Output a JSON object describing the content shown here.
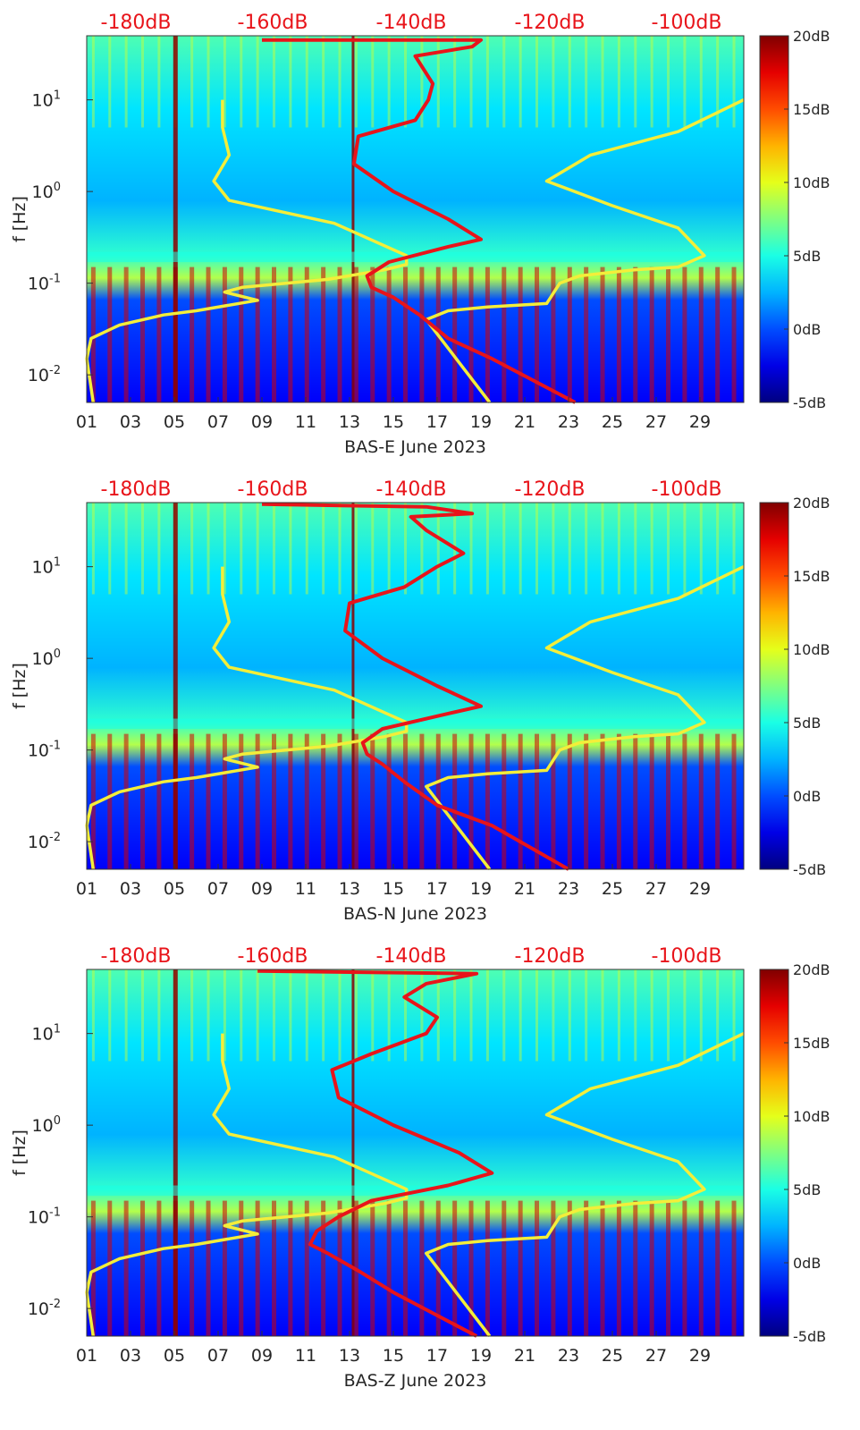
{
  "chart_data": [
    {
      "type": "heatmap",
      "title": "",
      "xlabel": "BAS-E June 2023",
      "ylabel": "f [Hz]",
      "x_ticks": [
        "01",
        "03",
        "05",
        "07",
        "09",
        "11",
        "13",
        "15",
        "17",
        "19",
        "21",
        "23",
        "25",
        "27",
        "29"
      ],
      "y_ticks": [
        "10^1",
        "10^0",
        "10^-1",
        "10^-2"
      ],
      "y_range_hz": [
        0.005,
        50
      ],
      "top_ticks": [
        "-180dB",
        "-160dB",
        "-140dB",
        "-120dB",
        "-100dB"
      ],
      "colorbar": {
        "labels": [
          "20dB",
          "15dB",
          "10dB",
          "5dB",
          "0dB",
          "-5dB"
        ],
        "range_db": [
          -5,
          20
        ]
      },
      "series": [
        {
          "name": "yellow curve",
          "points": [
            [
              1.3,
              0.005
            ],
            [
              1.0,
              0.015
            ],
            [
              1.2,
              0.025
            ],
            [
              2.5,
              0.035
            ],
            [
              4.5,
              0.045
            ],
            [
              6.0,
              0.05
            ],
            [
              8.8,
              0.065
            ],
            [
              7.3,
              0.08
            ],
            [
              8.1,
              0.09
            ],
            [
              12.0,
              0.11
            ],
            [
              14.6,
              0.14
            ],
            [
              15.6,
              0.16
            ],
            [
              15.6,
              0.2
            ],
            [
              12.3,
              0.45
            ],
            [
              7.5,
              0.8
            ],
            [
              6.8,
              1.3
            ],
            [
              7.5,
              2.5
            ],
            [
              7.2,
              5
            ],
            [
              7.2,
              10
            ]
          ]
        },
        {
          "name": "yellow curve right",
          "points": [
            [
              19.4,
              0.005
            ],
            [
              16.5,
              0.04
            ],
            [
              17.5,
              0.05
            ],
            [
              19.3,
              0.055
            ],
            [
              22.0,
              0.06
            ],
            [
              22.6,
              0.1
            ],
            [
              23.5,
              0.12
            ],
            [
              26.0,
              0.14
            ],
            [
              28.0,
              0.15
            ],
            [
              29.2,
              0.2
            ],
            [
              28.0,
              0.4
            ],
            [
              25.0,
              0.7
            ],
            [
              22.0,
              1.3
            ],
            [
              24.0,
              2.5
            ],
            [
              28.0,
              4.5
            ],
            [
              31.0,
              10
            ]
          ]
        },
        {
          "name": "red curve",
          "points": [
            [
              23.3,
              0.005
            ],
            [
              19.5,
              0.015
            ],
            [
              17.5,
              0.025
            ],
            [
              16.2,
              0.045
            ],
            [
              15.0,
              0.07
            ],
            [
              14.0,
              0.09
            ],
            [
              13.8,
              0.12
            ],
            [
              14.8,
              0.17
            ],
            [
              17.5,
              0.25
            ],
            [
              19.0,
              0.3
            ],
            [
              17.5,
              0.5
            ],
            [
              15.0,
              1.0
            ],
            [
              13.2,
              2.0
            ],
            [
              13.4,
              4.0
            ],
            [
              16.0,
              6.0
            ],
            [
              16.6,
              10
            ],
            [
              16.8,
              15
            ],
            [
              16.0,
              30
            ],
            [
              18.6,
              38
            ],
            [
              19.0,
              45
            ],
            [
              9.0,
              45
            ]
          ]
        }
      ]
    },
    {
      "type": "heatmap",
      "title": "",
      "xlabel": "BAS-N June 2023",
      "ylabel": "f [Hz]",
      "x_ticks": [
        "01",
        "03",
        "05",
        "07",
        "09",
        "11",
        "13",
        "15",
        "17",
        "19",
        "21",
        "23",
        "25",
        "27",
        "29"
      ],
      "y_ticks": [
        "10^1",
        "10^0",
        "10^-1",
        "10^-2"
      ],
      "y_range_hz": [
        0.005,
        50
      ],
      "top_ticks": [
        "-180dB",
        "-160dB",
        "-140dB",
        "-120dB",
        "-100dB"
      ],
      "colorbar": {
        "labels": [
          "20dB",
          "15dB",
          "10dB",
          "5dB",
          "0dB",
          "-5dB"
        ],
        "range_db": [
          -5,
          20
        ]
      },
      "series": [
        {
          "name": "yellow curve",
          "points": [
            [
              1.3,
              0.005
            ],
            [
              1.0,
              0.015
            ],
            [
              1.2,
              0.025
            ],
            [
              2.5,
              0.035
            ],
            [
              4.5,
              0.045
            ],
            [
              6.0,
              0.05
            ],
            [
              8.8,
              0.065
            ],
            [
              7.3,
              0.08
            ],
            [
              8.1,
              0.09
            ],
            [
              12.0,
              0.11
            ],
            [
              14.6,
              0.14
            ],
            [
              15.6,
              0.16
            ],
            [
              15.6,
              0.2
            ],
            [
              12.3,
              0.45
            ],
            [
              7.5,
              0.8
            ],
            [
              6.8,
              1.3
            ],
            [
              7.5,
              2.5
            ],
            [
              7.2,
              5
            ],
            [
              7.2,
              10
            ]
          ]
        },
        {
          "name": "yellow curve right",
          "points": [
            [
              19.4,
              0.005
            ],
            [
              16.5,
              0.04
            ],
            [
              17.5,
              0.05
            ],
            [
              19.3,
              0.055
            ],
            [
              22.0,
              0.06
            ],
            [
              22.6,
              0.1
            ],
            [
              23.5,
              0.12
            ],
            [
              26.0,
              0.14
            ],
            [
              28.0,
              0.15
            ],
            [
              29.2,
              0.2
            ],
            [
              28.0,
              0.4
            ],
            [
              25.0,
              0.7
            ],
            [
              22.0,
              1.3
            ],
            [
              24.0,
              2.5
            ],
            [
              28.0,
              4.5
            ],
            [
              31.0,
              10
            ]
          ]
        },
        {
          "name": "red curve",
          "points": [
            [
              23.0,
              0.005
            ],
            [
              19.5,
              0.015
            ],
            [
              17.0,
              0.025
            ],
            [
              15.5,
              0.045
            ],
            [
              14.5,
              0.07
            ],
            [
              13.8,
              0.09
            ],
            [
              13.6,
              0.12
            ],
            [
              14.5,
              0.17
            ],
            [
              17.5,
              0.25
            ],
            [
              19.0,
              0.3
            ],
            [
              17.0,
              0.5
            ],
            [
              14.5,
              1.0
            ],
            [
              12.8,
              2.0
            ],
            [
              13.0,
              4.0
            ],
            [
              15.5,
              6.0
            ],
            [
              17.0,
              10
            ],
            [
              18.2,
              14
            ],
            [
              16.5,
              25
            ],
            [
              15.8,
              35
            ],
            [
              18.6,
              38
            ],
            [
              16.5,
              45
            ],
            [
              9.0,
              48
            ]
          ]
        }
      ]
    },
    {
      "type": "heatmap",
      "title": "",
      "xlabel": "BAS-Z June 2023",
      "ylabel": "f [Hz]",
      "x_ticks": [
        "01",
        "03",
        "05",
        "07",
        "09",
        "11",
        "13",
        "15",
        "17",
        "19",
        "21",
        "23",
        "25",
        "27",
        "29"
      ],
      "y_ticks": [
        "10^1",
        "10^0",
        "10^-1",
        "10^-2"
      ],
      "y_range_hz": [
        0.005,
        50
      ],
      "top_ticks": [
        "-180dB",
        "-160dB",
        "-140dB",
        "-120dB",
        "-100dB"
      ],
      "colorbar": {
        "labels": [
          "20dB",
          "15dB",
          "10dB",
          "5dB",
          "0dB",
          "-5dB"
        ],
        "range_db": [
          -5,
          20
        ]
      },
      "series": [
        {
          "name": "yellow curve",
          "points": [
            [
              1.3,
              0.005
            ],
            [
              1.0,
              0.015
            ],
            [
              1.2,
              0.025
            ],
            [
              2.5,
              0.035
            ],
            [
              4.5,
              0.045
            ],
            [
              6.0,
              0.05
            ],
            [
              8.8,
              0.065
            ],
            [
              7.3,
              0.08
            ],
            [
              8.1,
              0.09
            ],
            [
              12.0,
              0.11
            ],
            [
              14.6,
              0.14
            ],
            [
              15.6,
              0.16
            ],
            [
              15.6,
              0.2
            ],
            [
              12.3,
              0.45
            ],
            [
              7.5,
              0.8
            ],
            [
              6.8,
              1.3
            ],
            [
              7.5,
              2.5
            ],
            [
              7.2,
              5
            ],
            [
              7.2,
              10
            ]
          ]
        },
        {
          "name": "yellow curve right",
          "points": [
            [
              19.4,
              0.005
            ],
            [
              16.5,
              0.04
            ],
            [
              17.5,
              0.05
            ],
            [
              19.3,
              0.055
            ],
            [
              22.0,
              0.06
            ],
            [
              22.6,
              0.1
            ],
            [
              23.5,
              0.12
            ],
            [
              26.0,
              0.14
            ],
            [
              28.0,
              0.15
            ],
            [
              29.2,
              0.2
            ],
            [
              28.0,
              0.4
            ],
            [
              25.0,
              0.7
            ],
            [
              22.0,
              1.3
            ],
            [
              24.0,
              2.5
            ],
            [
              28.0,
              4.5
            ],
            [
              31.0,
              10
            ]
          ]
        },
        {
          "name": "red curve",
          "points": [
            [
              18.8,
              0.005
            ],
            [
              15.0,
              0.015
            ],
            [
              13.5,
              0.025
            ],
            [
              12.0,
              0.04
            ],
            [
              11.2,
              0.05
            ],
            [
              11.5,
              0.07
            ],
            [
              12.5,
              0.1
            ],
            [
              14.0,
              0.15
            ],
            [
              17.5,
              0.22
            ],
            [
              19.5,
              0.3
            ],
            [
              18.0,
              0.5
            ],
            [
              15.0,
              1.0
            ],
            [
              12.5,
              2.0
            ],
            [
              12.2,
              4.0
            ],
            [
              14.0,
              6.0
            ],
            [
              16.5,
              10
            ],
            [
              17.0,
              15
            ],
            [
              15.5,
              25
            ],
            [
              16.5,
              35
            ],
            [
              18.8,
              45
            ],
            [
              8.8,
              48
            ]
          ]
        }
      ]
    }
  ]
}
